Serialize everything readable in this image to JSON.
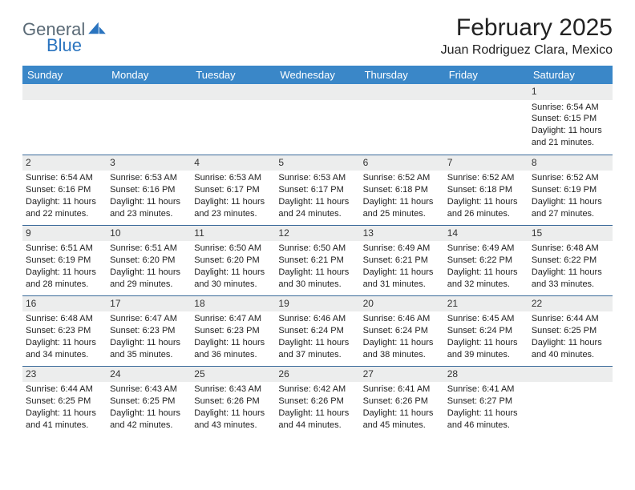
{
  "logo": {
    "word1": "General",
    "word2": "Blue"
  },
  "title": "February 2025",
  "location": "Juan Rodriguez Clara, Mexico",
  "colors": {
    "header_bg": "#3a87c8",
    "header_text": "#ffffff",
    "daynum_bg": "#eceded",
    "rule": "#3a6a9a",
    "logo_gray": "#5a6a76",
    "logo_blue": "#2a74bf",
    "page_bg": "#ffffff"
  },
  "weekdays": [
    "Sunday",
    "Monday",
    "Tuesday",
    "Wednesday",
    "Thursday",
    "Friday",
    "Saturday"
  ],
  "weeks": [
    [
      {
        "n": "",
        "sr": "",
        "ss": "",
        "dl": ""
      },
      {
        "n": "",
        "sr": "",
        "ss": "",
        "dl": ""
      },
      {
        "n": "",
        "sr": "",
        "ss": "",
        "dl": ""
      },
      {
        "n": "",
        "sr": "",
        "ss": "",
        "dl": ""
      },
      {
        "n": "",
        "sr": "",
        "ss": "",
        "dl": ""
      },
      {
        "n": "",
        "sr": "",
        "ss": "",
        "dl": ""
      },
      {
        "n": "1",
        "sr": "Sunrise: 6:54 AM",
        "ss": "Sunset: 6:15 PM",
        "dl": "Daylight: 11 hours and 21 minutes."
      }
    ],
    [
      {
        "n": "2",
        "sr": "Sunrise: 6:54 AM",
        "ss": "Sunset: 6:16 PM",
        "dl": "Daylight: 11 hours and 22 minutes."
      },
      {
        "n": "3",
        "sr": "Sunrise: 6:53 AM",
        "ss": "Sunset: 6:16 PM",
        "dl": "Daylight: 11 hours and 23 minutes."
      },
      {
        "n": "4",
        "sr": "Sunrise: 6:53 AM",
        "ss": "Sunset: 6:17 PM",
        "dl": "Daylight: 11 hours and 23 minutes."
      },
      {
        "n": "5",
        "sr": "Sunrise: 6:53 AM",
        "ss": "Sunset: 6:17 PM",
        "dl": "Daylight: 11 hours and 24 minutes."
      },
      {
        "n": "6",
        "sr": "Sunrise: 6:52 AM",
        "ss": "Sunset: 6:18 PM",
        "dl": "Daylight: 11 hours and 25 minutes."
      },
      {
        "n": "7",
        "sr": "Sunrise: 6:52 AM",
        "ss": "Sunset: 6:18 PM",
        "dl": "Daylight: 11 hours and 26 minutes."
      },
      {
        "n": "8",
        "sr": "Sunrise: 6:52 AM",
        "ss": "Sunset: 6:19 PM",
        "dl": "Daylight: 11 hours and 27 minutes."
      }
    ],
    [
      {
        "n": "9",
        "sr": "Sunrise: 6:51 AM",
        "ss": "Sunset: 6:19 PM",
        "dl": "Daylight: 11 hours and 28 minutes."
      },
      {
        "n": "10",
        "sr": "Sunrise: 6:51 AM",
        "ss": "Sunset: 6:20 PM",
        "dl": "Daylight: 11 hours and 29 minutes."
      },
      {
        "n": "11",
        "sr": "Sunrise: 6:50 AM",
        "ss": "Sunset: 6:20 PM",
        "dl": "Daylight: 11 hours and 30 minutes."
      },
      {
        "n": "12",
        "sr": "Sunrise: 6:50 AM",
        "ss": "Sunset: 6:21 PM",
        "dl": "Daylight: 11 hours and 30 minutes."
      },
      {
        "n": "13",
        "sr": "Sunrise: 6:49 AM",
        "ss": "Sunset: 6:21 PM",
        "dl": "Daylight: 11 hours and 31 minutes."
      },
      {
        "n": "14",
        "sr": "Sunrise: 6:49 AM",
        "ss": "Sunset: 6:22 PM",
        "dl": "Daylight: 11 hours and 32 minutes."
      },
      {
        "n": "15",
        "sr": "Sunrise: 6:48 AM",
        "ss": "Sunset: 6:22 PM",
        "dl": "Daylight: 11 hours and 33 minutes."
      }
    ],
    [
      {
        "n": "16",
        "sr": "Sunrise: 6:48 AM",
        "ss": "Sunset: 6:23 PM",
        "dl": "Daylight: 11 hours and 34 minutes."
      },
      {
        "n": "17",
        "sr": "Sunrise: 6:47 AM",
        "ss": "Sunset: 6:23 PM",
        "dl": "Daylight: 11 hours and 35 minutes."
      },
      {
        "n": "18",
        "sr": "Sunrise: 6:47 AM",
        "ss": "Sunset: 6:23 PM",
        "dl": "Daylight: 11 hours and 36 minutes."
      },
      {
        "n": "19",
        "sr": "Sunrise: 6:46 AM",
        "ss": "Sunset: 6:24 PM",
        "dl": "Daylight: 11 hours and 37 minutes."
      },
      {
        "n": "20",
        "sr": "Sunrise: 6:46 AM",
        "ss": "Sunset: 6:24 PM",
        "dl": "Daylight: 11 hours and 38 minutes."
      },
      {
        "n": "21",
        "sr": "Sunrise: 6:45 AM",
        "ss": "Sunset: 6:24 PM",
        "dl": "Daylight: 11 hours and 39 minutes."
      },
      {
        "n": "22",
        "sr": "Sunrise: 6:44 AM",
        "ss": "Sunset: 6:25 PM",
        "dl": "Daylight: 11 hours and 40 minutes."
      }
    ],
    [
      {
        "n": "23",
        "sr": "Sunrise: 6:44 AM",
        "ss": "Sunset: 6:25 PM",
        "dl": "Daylight: 11 hours and 41 minutes."
      },
      {
        "n": "24",
        "sr": "Sunrise: 6:43 AM",
        "ss": "Sunset: 6:25 PM",
        "dl": "Daylight: 11 hours and 42 minutes."
      },
      {
        "n": "25",
        "sr": "Sunrise: 6:43 AM",
        "ss": "Sunset: 6:26 PM",
        "dl": "Daylight: 11 hours and 43 minutes."
      },
      {
        "n": "26",
        "sr": "Sunrise: 6:42 AM",
        "ss": "Sunset: 6:26 PM",
        "dl": "Daylight: 11 hours and 44 minutes."
      },
      {
        "n": "27",
        "sr": "Sunrise: 6:41 AM",
        "ss": "Sunset: 6:26 PM",
        "dl": "Daylight: 11 hours and 45 minutes."
      },
      {
        "n": "28",
        "sr": "Sunrise: 6:41 AM",
        "ss": "Sunset: 6:27 PM",
        "dl": "Daylight: 11 hours and 46 minutes."
      },
      {
        "n": "",
        "sr": "",
        "ss": "",
        "dl": ""
      }
    ]
  ]
}
